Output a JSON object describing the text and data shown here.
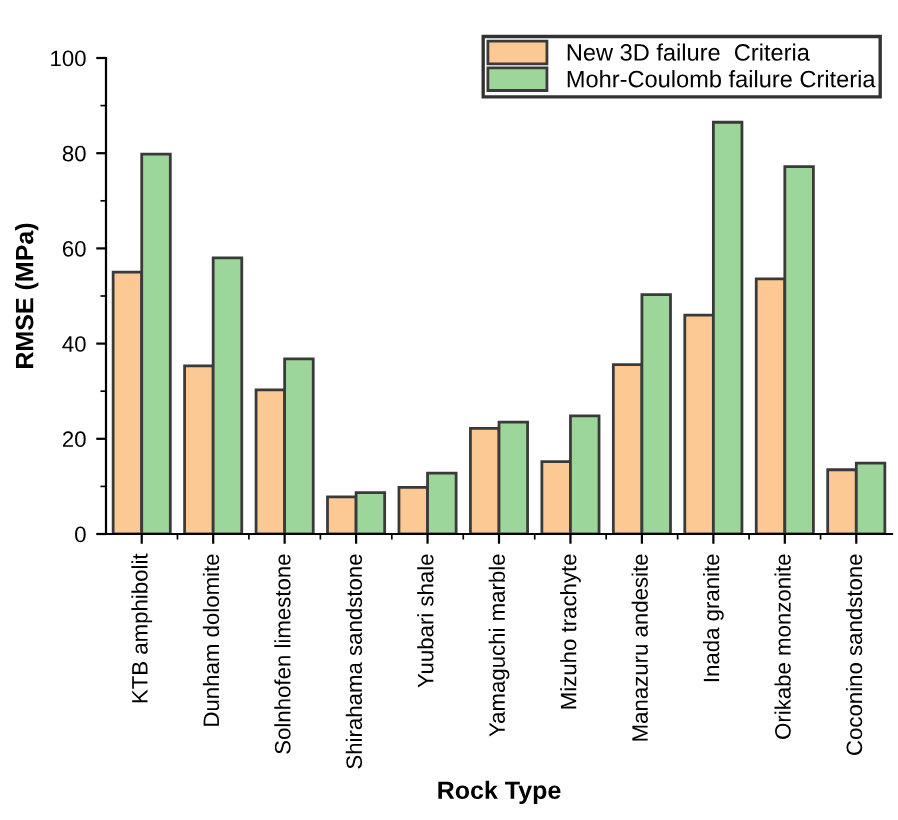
{
  "chart_data": {
    "type": "bar",
    "xlabel": "Rock Type",
    "ylabel": "RMSE (MPa)",
    "categories": [
      "KTB amphibolit",
      "Dunham dolomite",
      "Solnhofen limestone",
      "Shirahama sandstone",
      "Yuubari shale",
      "Yamaguchi marble",
      "Mizuho trachyte",
      "Manazuru andesite",
      "Inada granite",
      "Orikabe monzonite",
      "Coconino sandstone"
    ],
    "series": [
      {
        "name": "New 3D failure  Criteria",
        "color": "#fcc894",
        "values": [
          55,
          35.3,
          30.3,
          7.8,
          9.8,
          22.2,
          15.2,
          35.6,
          46,
          53.6,
          13.5
        ]
      },
      {
        "name": "Mohr-Coulomb failure Criteria",
        "color": "#9dd69a",
        "values": [
          79.8,
          58,
          36.8,
          8.7,
          12.8,
          23.5,
          24.8,
          50.3,
          86.5,
          77.2,
          14.9
        ]
      }
    ],
    "ylim": [
      0,
      100
    ],
    "yticks": [
      0,
      20,
      40,
      60,
      80,
      100
    ],
    "grid": false,
    "legend": "top right"
  }
}
